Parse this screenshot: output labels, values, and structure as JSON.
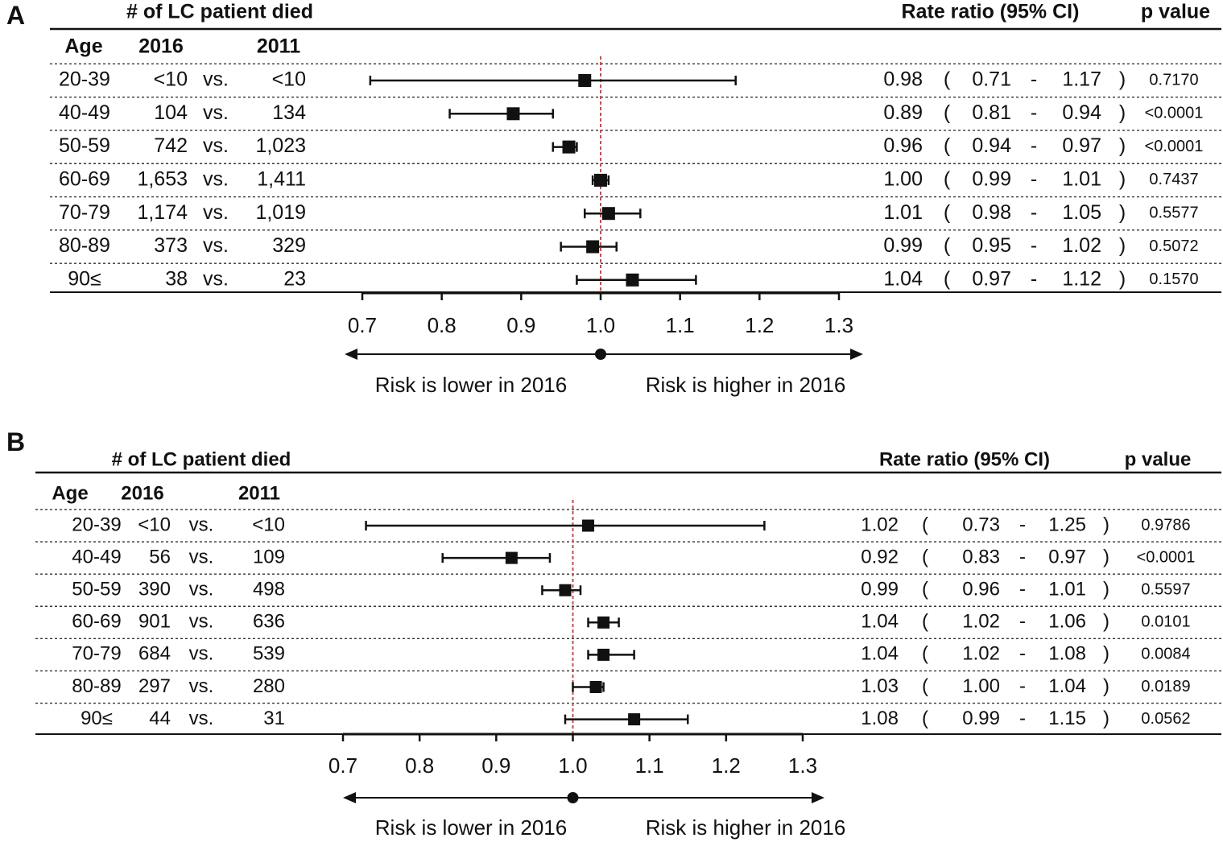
{
  "chart_data": [
    {
      "type": "forest",
      "panel_label": "A",
      "header_group": "# of LC patient died",
      "col_age": "Age",
      "col_2016": "2016",
      "col_2011": "2011",
      "col_rr": "Rate ratio (95% CI)",
      "col_p": "p value",
      "vs_label": "vs.",
      "rows": [
        {
          "age": "20-39",
          "n2016": "<10",
          "n2011": "<10",
          "rr": 0.98,
          "lo": 0.71,
          "hi": 1.17,
          "rr_s": "0.98",
          "lo_s": "0.71",
          "hi_s": "1.17",
          "p": "0.7170"
        },
        {
          "age": "40-49",
          "n2016": "104",
          "n2011": "134",
          "rr": 0.89,
          "lo": 0.81,
          "hi": 0.94,
          "rr_s": "0.89",
          "lo_s": "0.81",
          "hi_s": "0.94",
          "p": "<0.0001"
        },
        {
          "age": "50-59",
          "n2016": "742",
          "n2011": "1,023",
          "rr": 0.96,
          "lo": 0.94,
          "hi": 0.97,
          "rr_s": "0.96",
          "lo_s": "0.94",
          "hi_s": "0.97",
          "p": "<0.0001"
        },
        {
          "age": "60-69",
          "n2016": "1,653",
          "n2011": "1,411",
          "rr": 1.0,
          "lo": 0.99,
          "hi": 1.01,
          "rr_s": "1.00",
          "lo_s": "0.99",
          "hi_s": "1.01",
          "p": "0.7437"
        },
        {
          "age": "70-79",
          "n2016": "1,174",
          "n2011": "1,019",
          "rr": 1.01,
          "lo": 0.98,
          "hi": 1.05,
          "rr_s": "1.01",
          "lo_s": "0.98",
          "hi_s": "1.05",
          "p": "0.5577"
        },
        {
          "age": "80-89",
          "n2016": "373",
          "n2011": "329",
          "rr": 0.99,
          "lo": 0.95,
          "hi": 1.02,
          "rr_s": "0.99",
          "lo_s": "0.95",
          "hi_s": "1.02",
          "p": "0.5072"
        },
        {
          "age": "90≤",
          "n2016": "38",
          "n2011": "23",
          "rr": 1.04,
          "lo": 0.97,
          "hi": 1.12,
          "rr_s": "1.04",
          "lo_s": "0.97",
          "hi_s": "1.12",
          "p": "0.1570"
        }
      ],
      "xlim": [
        0.7,
        1.3
      ],
      "ticks": [
        "0.7",
        "0.8",
        "0.9",
        "1.0",
        "1.1",
        "1.2",
        "1.3"
      ],
      "reference": 1.0,
      "reference_color": "#c0504d",
      "lower_label": "Risk is lower in 2016",
      "higher_label": "Risk is higher in 2016"
    },
    {
      "type": "forest",
      "panel_label": "B",
      "header_group": "# of LC patient died",
      "col_age": "Age",
      "col_2016": "2016",
      "col_2011": "2011",
      "col_rr": "Rate ratio (95% CI)",
      "col_p": "p value",
      "vs_label": "vs.",
      "rows": [
        {
          "age": "20-39",
          "n2016": "<10",
          "n2011": "<10",
          "rr": 1.02,
          "lo": 0.73,
          "hi": 1.25,
          "rr_s": "1.02",
          "lo_s": "0.73",
          "hi_s": "1.25",
          "p": "0.9786"
        },
        {
          "age": "40-49",
          "n2016": "56",
          "n2011": "109",
          "rr": 0.92,
          "lo": 0.83,
          "hi": 0.97,
          "rr_s": "0.92",
          "lo_s": "0.83",
          "hi_s": "0.97",
          "p": "<0.0001"
        },
        {
          "age": "50-59",
          "n2016": "390",
          "n2011": "498",
          "rr": 0.99,
          "lo": 0.96,
          "hi": 1.01,
          "rr_s": "0.99",
          "lo_s": "0.96",
          "hi_s": "1.01",
          "p": "0.5597"
        },
        {
          "age": "60-69",
          "n2016": "901",
          "n2011": "636",
          "rr": 1.04,
          "lo": 1.02,
          "hi": 1.06,
          "rr_s": "1.04",
          "lo_s": "1.02",
          "hi_s": "1.06",
          "p": "0.0101"
        },
        {
          "age": "70-79",
          "n2016": "684",
          "n2011": "539",
          "rr": 1.04,
          "lo": 1.02,
          "hi": 1.08,
          "rr_s": "1.04",
          "lo_s": "1.02",
          "hi_s": "1.08",
          "p": "0.0084"
        },
        {
          "age": "80-89",
          "n2016": "297",
          "n2011": "280",
          "rr": 1.03,
          "lo": 1.0,
          "hi": 1.04,
          "rr_s": "1.03",
          "lo_s": "1.00",
          "hi_s": "1.04",
          "p": "0.0189"
        },
        {
          "age": "90≤",
          "n2016": "44",
          "n2011": "31",
          "rr": 1.08,
          "lo": 0.99,
          "hi": 1.15,
          "rr_s": "1.08",
          "lo_s": "0.99",
          "hi_s": "1.15",
          "p": "0.0562"
        }
      ],
      "xlim": [
        0.7,
        1.3
      ],
      "ticks": [
        "0.7",
        "0.8",
        "0.9",
        "1.0",
        "1.1",
        "1.2",
        "1.3"
      ],
      "reference": 1.0,
      "reference_color": "#c0504d",
      "lower_label": "Risk is lower in 2016",
      "higher_label": "Risk is higher in 2016"
    }
  ]
}
